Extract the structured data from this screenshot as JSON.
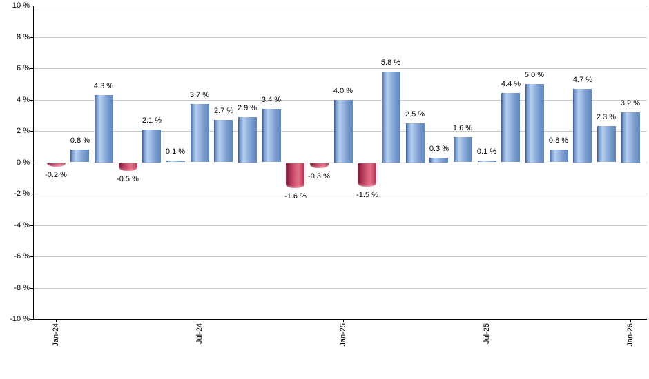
{
  "chart_data": {
    "type": "bar",
    "title": "",
    "xlabel": "",
    "ylabel": "",
    "ylim": [
      -10,
      10
    ],
    "y_tick_step": 2,
    "y_ticks": [
      {
        "value": 10,
        "label": "10 %"
      },
      {
        "value": 8,
        "label": "8 %"
      },
      {
        "value": 6,
        "label": "6 %"
      },
      {
        "value": 4,
        "label": "4 %"
      },
      {
        "value": 2,
        "label": "2 %"
      },
      {
        "value": 0,
        "label": "0 %"
      },
      {
        "value": -2,
        "label": "-2 %"
      },
      {
        "value": -4,
        "label": "-4 %"
      },
      {
        "value": -6,
        "label": "-6 %"
      },
      {
        "value": -8,
        "label": "-8 %"
      },
      {
        "value": -10,
        "label": "-10 %"
      }
    ],
    "x_tick_labels": [
      {
        "bar_index": 0,
        "label": "Jan-24"
      },
      {
        "bar_index": 6,
        "label": "Jul-24"
      },
      {
        "bar_index": 12,
        "label": "Jan-25"
      },
      {
        "bar_index": 18,
        "label": "Jul-25"
      },
      {
        "bar_index": 24,
        "label": "Jan-26"
      }
    ],
    "values": [
      -0.2,
      0.8,
      4.3,
      -0.5,
      2.1,
      0.1,
      3.7,
      2.7,
      2.9,
      3.4,
      -1.6,
      -0.3,
      4.0,
      -1.5,
      5.8,
      2.5,
      0.3,
      1.6,
      0.1,
      4.4,
      5.0,
      0.8,
      4.7,
      2.3,
      3.2
    ],
    "value_labels": [
      "-0.2 %",
      "0.8 %",
      "4.3 %",
      "-0.5 %",
      "2.1 %",
      "0.1 %",
      "3.7 %",
      "2.7 %",
      "2.9 %",
      "3.4 %",
      "-1.6 %",
      "-0.3 %",
      "4.0 %",
      "-1.5 %",
      "5.8 %",
      "2.5 %",
      "0.3 %",
      "1.6 %",
      "0.1 %",
      "4.4 %",
      "5.0 %",
      "0.8 %",
      "4.7 %",
      "2.3 %",
      "3.2 %"
    ],
    "grid": true,
    "legend_position": "none",
    "colors": {
      "gridline": "#c8c8c8",
      "axis": "#000000",
      "label_text": "#000000",
      "positive_gradient_stops": [
        "#3f5c8e 0%",
        "#7c9ecf 12%",
        "#b7d0f0 30%",
        "#a3c0e8 42%",
        "#84a5d6 62%",
        "#7094c6 80%",
        "#6287ba 100%"
      ],
      "negative_gradient_stops": [
        "#6e1432 0%",
        "#b23a58 25%",
        "#dd607c 55%",
        "#e66d86 70%",
        "#c04a64 88%",
        "#a02846 100%"
      ]
    }
  }
}
